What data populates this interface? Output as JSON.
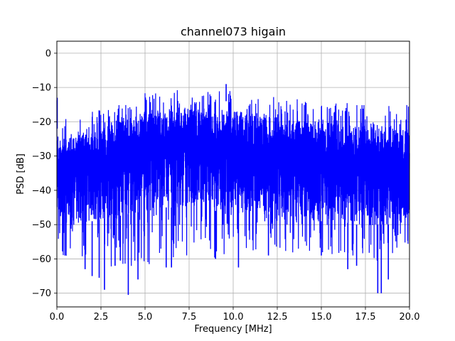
{
  "chart_data": {
    "type": "line",
    "title": "channel073 higain",
    "xlabel": "Frequency [MHz]",
    "ylabel": "PSD [dB]",
    "xlim": [
      0,
      20
    ],
    "ylim": [
      -74,
      3.5
    ],
    "xticks": [
      0,
      2.5,
      5,
      7.5,
      10,
      12.5,
      15,
      17.5,
      20
    ],
    "xtick_labels": [
      "0.0",
      "2.5",
      "5.0",
      "7.5",
      "10.0",
      "12.5",
      "15.0",
      "17.5",
      "20.0"
    ],
    "yticks": [
      0,
      -10,
      -20,
      -30,
      -40,
      -50,
      -60,
      -70
    ],
    "ytick_labels": [
      "0",
      "−10",
      "−20",
      "−30",
      "−40",
      "−50",
      "−60",
      "−70"
    ],
    "grid": true,
    "series": [
      {
        "color": "#0000ff",
        "style": "dense noisy spectrum",
        "envelope_x": [
          0,
          0.1,
          0.5,
          1.0,
          2.0,
          3.0,
          4.0,
          5.0,
          6.0,
          7.0,
          8.0,
          9.0,
          9.6,
          10.0,
          11.0,
          12.0,
          13.0,
          14.0,
          15.0,
          16.0,
          17.0,
          18.0,
          19.0,
          20.0
        ],
        "upper_envelope": [
          -13,
          -17,
          -17.5,
          -17,
          -16,
          -15,
          -13.5,
          -11.5,
          -10.5,
          -10.5,
          -11,
          -11.5,
          -9,
          -12,
          -12.5,
          -12.5,
          -13,
          -13.5,
          -14,
          -14.5,
          -14.5,
          -15,
          -15,
          -15
        ],
        "typical_high": [
          -22,
          -25,
          -25,
          -24,
          -23,
          -21,
          -19,
          -17,
          -15.5,
          -15.5,
          -16,
          -16.5,
          -16.5,
          -17,
          -18,
          -18.5,
          -19,
          -19.5,
          -20,
          -20.5,
          -21,
          -21.5,
          -22,
          -22
        ],
        "typical_low": [
          -48,
          -50,
          -50,
          -50,
          -49,
          -48,
          -47,
          -46,
          -45,
          -45,
          -45,
          -46,
          -46,
          -46,
          -47,
          -47,
          -48,
          -48,
          -49,
          -49,
          -50,
          -50,
          -50,
          -50
        ],
        "lower_envelope": [
          -55,
          -59,
          -60,
          -58,
          -62,
          -63,
          -64,
          -63,
          -62,
          -61,
          -61,
          -60,
          -60,
          -60,
          -59,
          -59,
          -59,
          -58,
          -58,
          -59,
          -60,
          -61,
          -60,
          -60
        ],
        "deep_dips": [
          {
            "x": 1.6,
            "y": -63
          },
          {
            "x": 2.0,
            "y": -65
          },
          {
            "x": 2.4,
            "y": -65.5
          },
          {
            "x": 2.7,
            "y": -69
          },
          {
            "x": 3.3,
            "y": -62
          },
          {
            "x": 3.6,
            "y": -60.5
          },
          {
            "x": 4.05,
            "y": -70.5
          },
          {
            "x": 4.6,
            "y": -66
          },
          {
            "x": 6.2,
            "y": -62.5
          },
          {
            "x": 6.5,
            "y": -62.5
          },
          {
            "x": 9.0,
            "y": -60
          },
          {
            "x": 10.3,
            "y": -62.5
          },
          {
            "x": 12.0,
            "y": -59
          },
          {
            "x": 15.0,
            "y": -59
          },
          {
            "x": 16.5,
            "y": -63
          },
          {
            "x": 17.0,
            "y": -62
          },
          {
            "x": 18.2,
            "y": -70
          },
          {
            "x": 18.4,
            "y": -70
          },
          {
            "x": 18.8,
            "y": -66
          }
        ]
      }
    ]
  }
}
